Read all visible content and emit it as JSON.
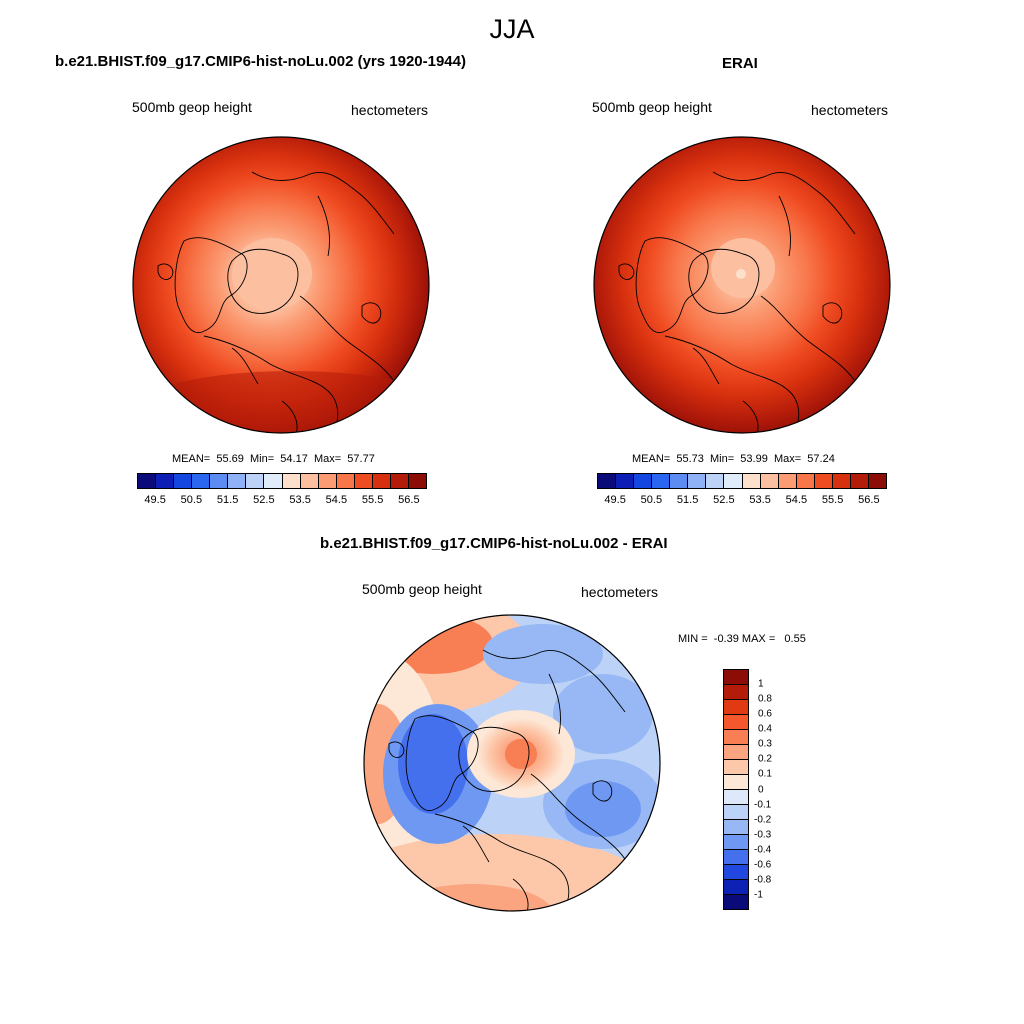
{
  "main_title": "JJA",
  "panels": {
    "model": {
      "title": "b.e21.BHIST.f09_g17.CMIP6-hist-noLu.002 (yrs 1920-1944)",
      "var_label": "500mb geop height",
      "units_label": "hectometers",
      "stats": {
        "mean_label": "MEAN=",
        "mean": "55.69",
        "min_label": "Min=",
        "min": "54.17",
        "max_label": "Max=",
        "max": "57.77"
      }
    },
    "obs": {
      "title": "ERAI",
      "var_label": "500mb geop height",
      "units_label": "hectometers",
      "stats": {
        "mean_label": "MEAN=",
        "mean": "55.73",
        "min_label": "Min=",
        "min": "53.99",
        "max_label": "Max=",
        "max": "57.24"
      }
    },
    "diff": {
      "title": "b.e21.BHIST.f09_g17.CMIP6-hist-noLu.002 - ERAI",
      "var_label": "500mb geop height",
      "units_label": "hectometers",
      "stats": {
        "min_label": "MIN =",
        "min": "-0.39",
        "max_label": "MAX =",
        "max": "0.55"
      }
    }
  },
  "abs_colorbar": {
    "ticks": [
      "49.5",
      "50.5",
      "51.5",
      "52.5",
      "53.5",
      "54.5",
      "55.5",
      "56.5"
    ],
    "colors": [
      "#0a0a78",
      "#0c1eb4",
      "#1446e0",
      "#2a66f0",
      "#5c8cf2",
      "#8eb2f5",
      "#bcd2f7",
      "#e0ecfa",
      "#fde0cc",
      "#fcc0a0",
      "#fb9c74",
      "#f8764a",
      "#f04c22",
      "#d6300e",
      "#b41c0a",
      "#8c0c06"
    ]
  },
  "diff_colorbar": {
    "ticks": [
      "1",
      "0.8",
      "0.6",
      "0.4",
      "0.3",
      "0.2",
      "0.1",
      "0",
      "-0.1",
      "-0.2",
      "-0.3",
      "-0.4",
      "-0.6",
      "-0.8",
      "-1"
    ],
    "colors": [
      "#8c0c06",
      "#b41c0a",
      "#e03a12",
      "#f4582c",
      "#f87e54",
      "#fba480",
      "#fdc8aa",
      "#fde8d8",
      "#dde9fa",
      "#bcd2f7",
      "#97b8f4",
      "#6f98f2",
      "#4470ee",
      "#2048e0",
      "#0c22b4",
      "#0a0a78"
    ]
  }
}
